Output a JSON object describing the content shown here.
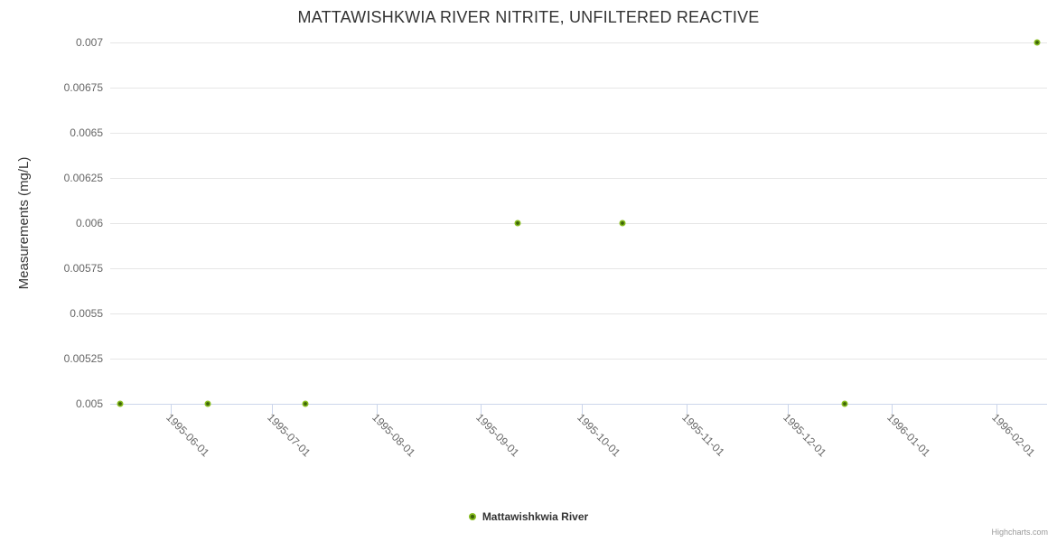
{
  "chart_data": {
    "type": "scatter",
    "title": "MATTAWISHKWIA RIVER NITRITE, UNFILTERED REACTIVE",
    "xlabel": "",
    "ylabel": "Measurements (mg/L)",
    "grid": true,
    "background_color": "#ffffff",
    "gridline_color": "#e6e6e6",
    "axis_line_color": "#ccd6eb",
    "x_axis": {
      "type": "datetime",
      "min": "1995-05-14",
      "max": "1996-02-16",
      "tick_labels": [
        "1995-06-01",
        "1995-07-01",
        "1995-08-01",
        "1995-09-01",
        "1995-10-01",
        "1995-11-01",
        "1995-12-01",
        "1996-01-01",
        "1996-02-01"
      ],
      "label_rotation_deg": 45
    },
    "y_axis": {
      "min": 0.005,
      "max": 0.007,
      "tick_interval": 0.00025,
      "tick_labels": [
        "0.005",
        "0.00525",
        "0.0055",
        "0.00575",
        "0.006",
        "0.00625",
        "0.0065",
        "0.00675",
        "0.007"
      ]
    },
    "series": [
      {
        "name": "Mattawishkwia River",
        "color": "#86bc1e",
        "marker_center_color": "#3e6409",
        "points": [
          {
            "date": "1995-05-17",
            "value": 0.005
          },
          {
            "date": "1995-06-12",
            "value": 0.005
          },
          {
            "date": "1995-07-11",
            "value": 0.005
          },
          {
            "date": "1995-09-12",
            "value": 0.006
          },
          {
            "date": "1995-10-13",
            "value": 0.006
          },
          {
            "date": "1995-12-18",
            "value": 0.005
          },
          {
            "date": "1996-02-13",
            "value": 0.007
          }
        ]
      }
    ],
    "legend": {
      "position": "bottom-center",
      "items": [
        {
          "label": "Mattawishkwia River",
          "color": "#86bc1e"
        }
      ]
    },
    "credits": "Highcharts.com"
  }
}
